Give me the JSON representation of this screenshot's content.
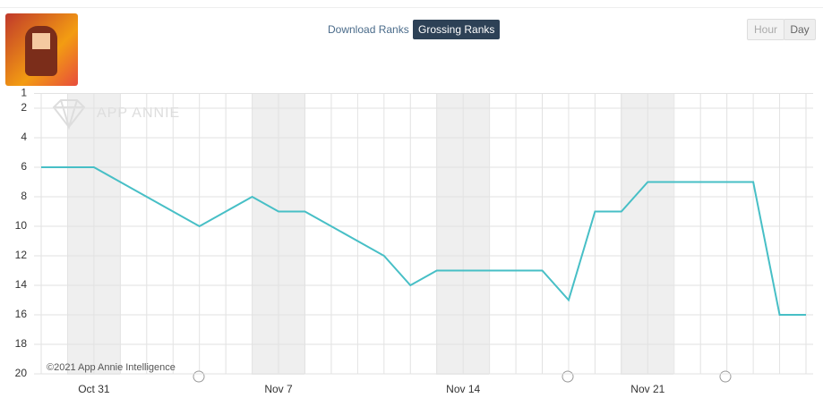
{
  "toolbar": {
    "download": "Download Ranks",
    "grossing": "Grossing Ranks",
    "hour": "Hour",
    "day": "Day"
  },
  "watermark": "APP ANNIE",
  "copyright": "©2021 App Annie Intelligence",
  "chart_data": {
    "type": "line",
    "categories": [
      null,
      null,
      "Oct 31",
      null,
      null,
      null,
      null,
      null,
      null,
      "Nov 7",
      null,
      null,
      null,
      null,
      null,
      null,
      "Nov 14",
      null,
      null,
      null,
      null,
      null,
      null,
      "Nov 21",
      null,
      null,
      null,
      null,
      null,
      null
    ],
    "series": [
      {
        "name": "Grossing Rank",
        "color": "#47bfc6",
        "values": [
          6,
          6,
          6,
          7,
          8,
          9,
          10,
          9,
          8,
          9,
          9,
          10,
          11,
          12,
          14,
          13,
          13,
          13,
          13,
          13,
          15,
          9,
          9,
          7,
          7,
          7,
          7,
          7,
          16,
          16
        ]
      }
    ],
    "ylim": [
      1,
      20
    ],
    "y_inverted": true,
    "yticks": [
      1,
      2,
      4,
      6,
      8,
      10,
      12,
      14,
      16,
      18,
      20
    ],
    "grid": true
  }
}
